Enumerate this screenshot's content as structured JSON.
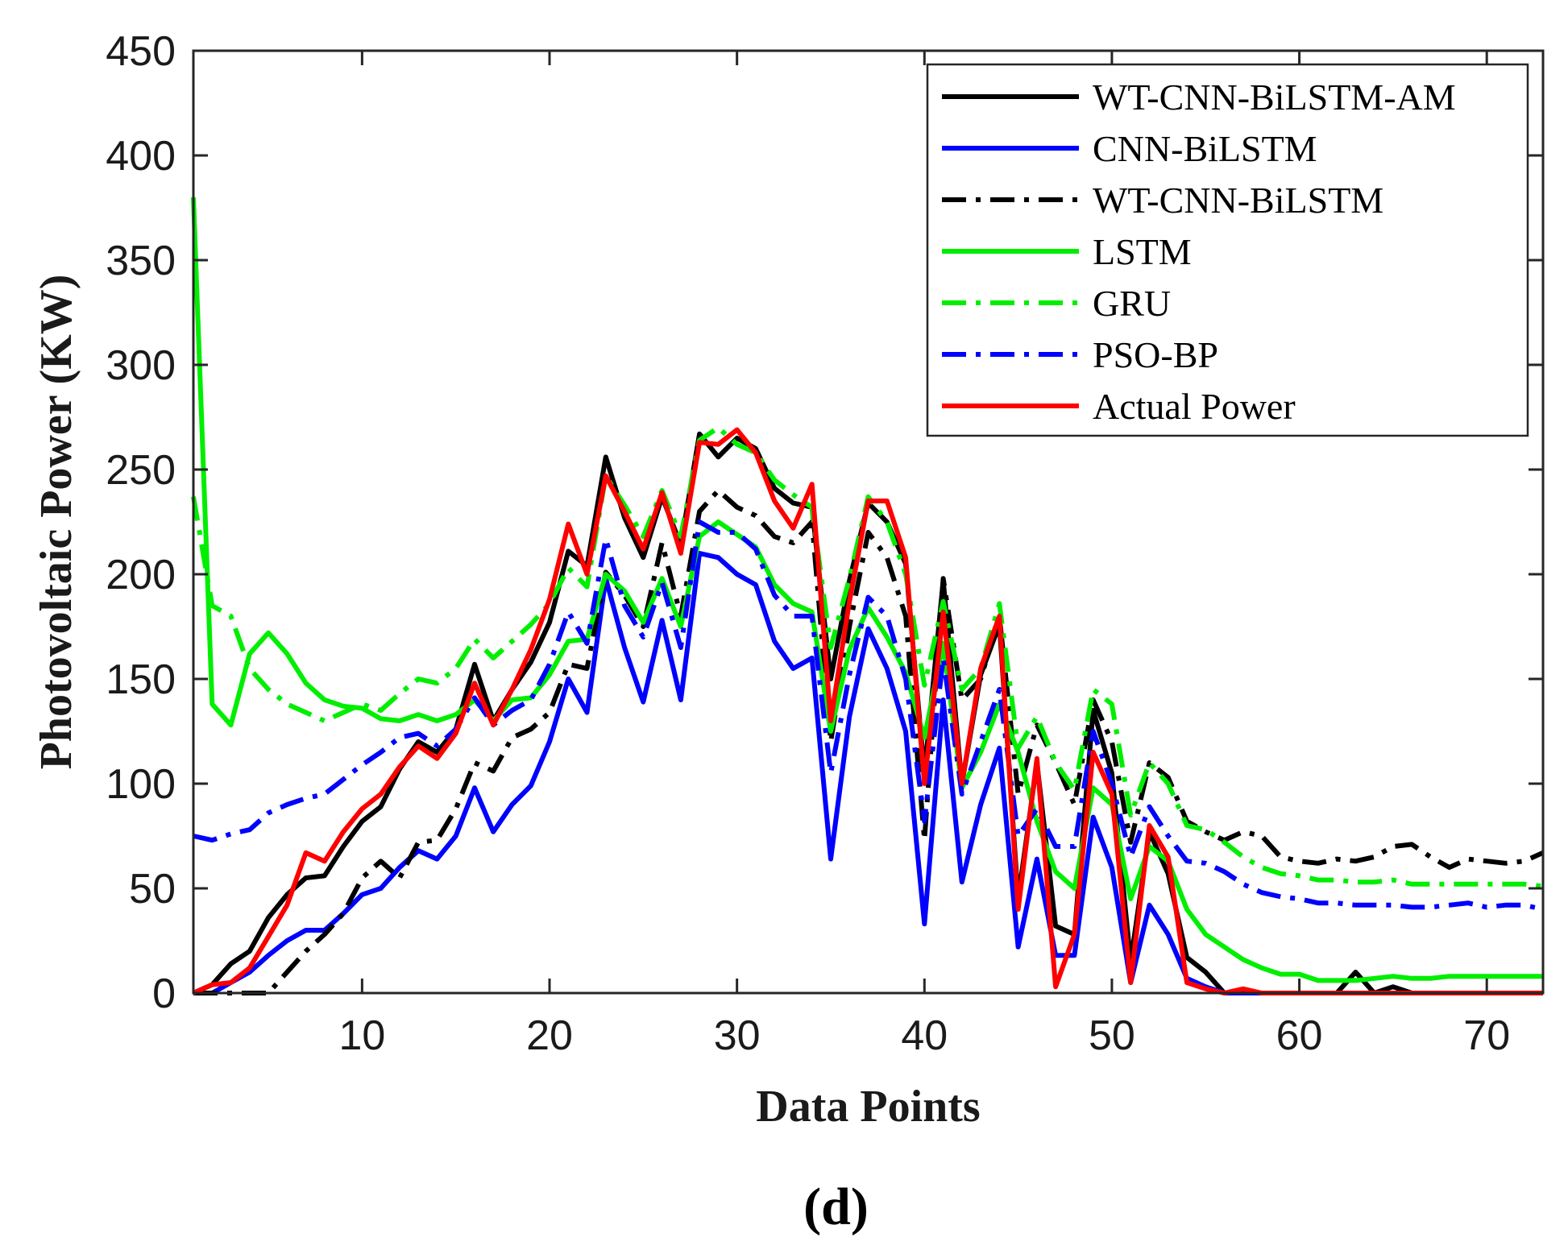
{
  "chart_data": {
    "type": "line",
    "xlabel": "Data Points",
    "ylabel": "Photovoltaic Power (KW)",
    "panel_label": "(d)",
    "xlim": [
      1,
      73
    ],
    "ylim": [
      0,
      450
    ],
    "xticks": [
      10,
      20,
      30,
      40,
      50,
      60,
      70
    ],
    "yticks": [
      0,
      50,
      100,
      150,
      200,
      250,
      300,
      350,
      400,
      450
    ],
    "legend_position": "top-right",
    "x": [
      1,
      2,
      3,
      4,
      5,
      6,
      7,
      8,
      9,
      10,
      11,
      12,
      13,
      14,
      15,
      16,
      17,
      18,
      19,
      20,
      21,
      22,
      23,
      24,
      25,
      26,
      27,
      28,
      29,
      30,
      31,
      32,
      33,
      34,
      35,
      36,
      37,
      38,
      39,
      40,
      41,
      42,
      43,
      44,
      45,
      46,
      47,
      48,
      49,
      50,
      51,
      52,
      53,
      54,
      55,
      56,
      57,
      58,
      59,
      60,
      61,
      62,
      63,
      64,
      65,
      66,
      67,
      68,
      69,
      70,
      71,
      72,
      73
    ],
    "series": [
      {
        "name": "WT-CNN-BiLSTM-AM",
        "color": "#000000",
        "style": "solid",
        "values": [
          0,
          4,
          14,
          20,
          36,
          47,
          55,
          56,
          70,
          82,
          89,
          107,
          120,
          115,
          126,
          157,
          130,
          145,
          158,
          177,
          211,
          204,
          256,
          227,
          208,
          237,
          214,
          267,
          256,
          265,
          260,
          241,
          234,
          232,
          150,
          197,
          234,
          225,
          205,
          105,
          197,
          100,
          152,
          176,
          45,
          110,
          32,
          28,
          135,
          105,
          15,
          77,
          57,
          17,
          10,
          0,
          0,
          0,
          0,
          0,
          0,
          0,
          10,
          0,
          3,
          0,
          0,
          0,
          0,
          0,
          0,
          0,
          0
        ]
      },
      {
        "name": "CNN-BiLSTM",
        "color": "#0000ff",
        "style": "solid",
        "values": [
          0,
          0,
          5,
          10,
          18,
          25,
          30,
          30,
          38,
          47,
          50,
          60,
          68,
          64,
          75,
          98,
          77,
          90,
          99,
          120,
          150,
          134,
          198,
          165,
          139,
          178,
          140,
          210,
          208,
          200,
          195,
          168,
          155,
          160,
          64,
          132,
          174,
          155,
          125,
          33,
          140,
          53,
          90,
          117,
          22,
          64,
          18,
          18,
          84,
          60,
          5,
          42,
          28,
          7,
          3,
          0,
          0,
          0,
          0,
          0,
          0,
          0,
          0,
          0,
          0,
          0,
          0,
          0,
          0,
          0,
          0,
          0,
          0
        ]
      },
      {
        "name": "WT-CNN-BiLSTM",
        "color": "#000000",
        "style": "dashdot",
        "values": [
          0,
          0,
          0,
          0,
          0,
          10,
          20,
          28,
          38,
          55,
          63,
          55,
          72,
          73,
          88,
          110,
          106,
          122,
          126,
          134,
          157,
          155,
          201,
          190,
          175,
          215,
          180,
          230,
          240,
          232,
          228,
          218,
          215,
          225,
          120,
          175,
          220,
          208,
          180,
          73,
          198,
          140,
          150,
          180,
          95,
          128,
          110,
          90,
          140,
          120,
          72,
          110,
          103,
          82,
          77,
          73,
          77,
          75,
          65,
          63,
          62,
          64,
          63,
          65,
          70,
          71,
          65,
          60,
          64,
          63,
          62,
          63,
          67
        ]
      },
      {
        "name": "LSTM",
        "color": "#00ee00",
        "style": "solid",
        "values": [
          380,
          138,
          128,
          162,
          172,
          162,
          148,
          140,
          137,
          136,
          131,
          130,
          133,
          130,
          133,
          140,
          130,
          140,
          141,
          152,
          168,
          169,
          200,
          192,
          177,
          198,
          175,
          218,
          225,
          219,
          213,
          195,
          186,
          182,
          125,
          164,
          184,
          170,
          153,
          122,
          167,
          98,
          115,
          138,
          115,
          82,
          58,
          50,
          98,
          90,
          45,
          70,
          63,
          40,
          28,
          22,
          16,
          12,
          9,
          9,
          6,
          6,
          6,
          7,
          8,
          7,
          7,
          8,
          8,
          8,
          8,
          8,
          8
        ]
      },
      {
        "name": "GRU",
        "color": "#00ee00",
        "style": "dashdot",
        "values": [
          237,
          185,
          180,
          155,
          145,
          138,
          134,
          130,
          134,
          138,
          135,
          143,
          150,
          148,
          155,
          169,
          160,
          168,
          176,
          186,
          203,
          194,
          247,
          233,
          218,
          240,
          218,
          264,
          270,
          262,
          258,
          245,
          238,
          232,
          165,
          198,
          237,
          225,
          200,
          147,
          187,
          145,
          155,
          186,
          117,
          132,
          110,
          97,
          145,
          138,
          85,
          110,
          100,
          80,
          78,
          72,
          65,
          60,
          57,
          56,
          54,
          54,
          53,
          53,
          54,
          52,
          52,
          52,
          52,
          52,
          52,
          52,
          51
        ]
      },
      {
        "name": "PSO-BP",
        "color": "#0000ff",
        "style": "dashdot",
        "values": [
          75,
          73,
          76,
          78,
          86,
          90,
          93,
          95,
          102,
          109,
          115,
          122,
          124,
          118,
          126,
          141,
          128,
          135,
          140,
          157,
          182,
          167,
          217,
          185,
          170,
          196,
          165,
          225,
          220,
          220,
          212,
          190,
          180,
          180,
          105,
          152,
          189,
          180,
          150,
          82,
          160,
          95,
          120,
          145,
          75,
          88,
          70,
          70,
          125,
          100,
          65,
          89,
          75,
          63,
          62,
          58,
          52,
          48,
          46,
          45,
          43,
          43,
          42,
          42,
          42,
          41,
          41,
          42,
          43,
          41,
          42,
          42,
          40
        ]
      },
      {
        "name": "Actual Power",
        "color": "#ff0000",
        "style": "solid",
        "values": [
          0,
          4,
          5,
          12,
          27,
          42,
          67,
          63,
          77,
          88,
          95,
          108,
          118,
          112,
          124,
          148,
          128,
          145,
          164,
          188,
          224,
          200,
          247,
          230,
          212,
          239,
          210,
          263,
          262,
          269,
          258,
          235,
          222,
          243,
          130,
          187,
          235,
          235,
          208,
          100,
          182,
          100,
          155,
          180,
          40,
          112,
          3,
          28,
          115,
          95,
          5,
          80,
          65,
          5,
          2,
          0,
          2,
          0,
          0,
          0,
          0,
          0,
          0,
          0,
          0,
          0,
          0,
          0,
          0,
          0,
          0,
          0,
          0
        ]
      }
    ]
  }
}
